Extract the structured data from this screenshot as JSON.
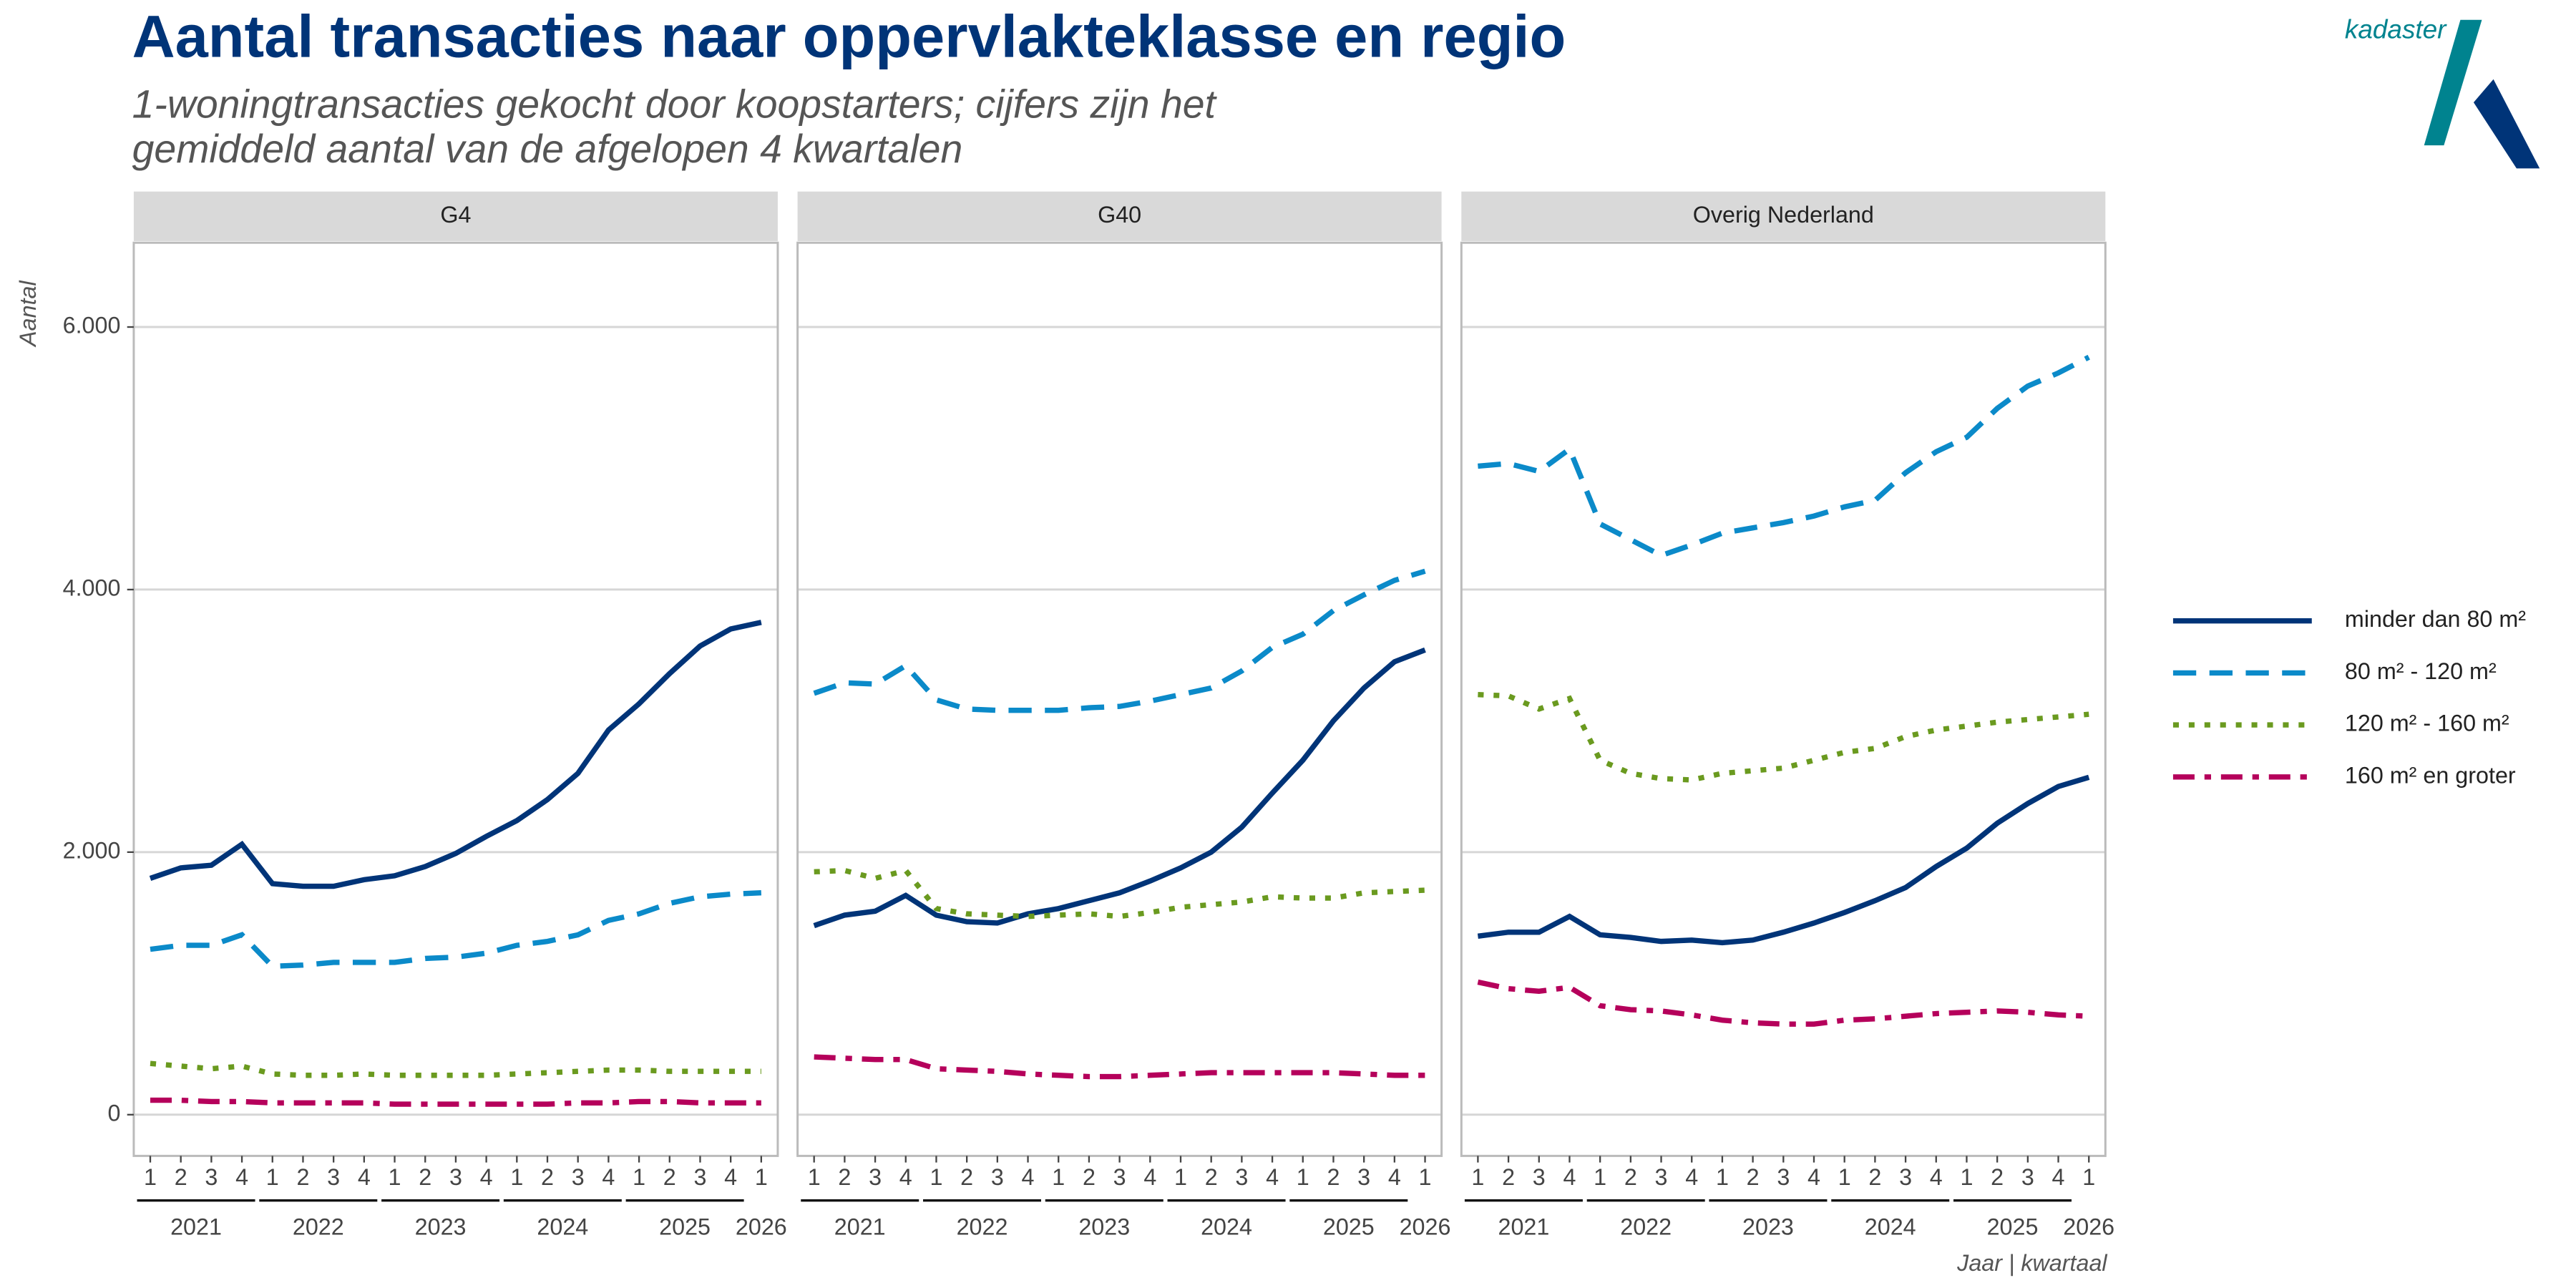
{
  "title": "Aantal transacties naar oppervlakteklasse en regio",
  "subtitle": [
    "1-woningtransacties gekocht door koopstarters; cijfers zijn het",
    "gemiddeld aantal van de afgelopen 4 kwartalen"
  ],
  "y_label": "Aantal",
  "x_label": "Jaar | kwartaal",
  "logo_text": "kadaster",
  "chart_data": [
    {
      "type": "line",
      "title": "G4",
      "categories": [
        "1",
        "2",
        "3",
        "4",
        "1",
        "2",
        "3",
        "4",
        "1",
        "2",
        "3",
        "4",
        "1",
        "2",
        "3",
        "4",
        "1",
        "2",
        "3",
        "4",
        "1"
      ],
      "years": [
        "2021",
        "2022",
        "2023",
        "2024",
        "2025",
        "2026"
      ],
      "ylim": [
        -314,
        6642
      ],
      "yticks": [
        0,
        {
          "value": 2000,
          "label": "2.000"
        },
        {
          "value": 4000,
          "label": "4.000"
        },
        {
          "value": 6000,
          "label": "6.000"
        }
      ],
      "grid": true,
      "series": [
        {
          "name": "minder dan 80 m²",
          "color": "#003478",
          "linestyle": "solid",
          "values": [
            1800,
            1880,
            1900,
            2060,
            1760,
            1740,
            1740,
            1790,
            1820,
            1890,
            1990,
            2120,
            2240,
            2400,
            2600,
            2930,
            3130,
            3360,
            3570,
            3700,
            3750
          ]
        },
        {
          "name": "80 m² - 120 m²",
          "color": "#0b8ac9",
          "linestyle": "dashed",
          "values": [
            1260,
            1290,
            1290,
            1370,
            1130,
            1140,
            1160,
            1160,
            1160,
            1190,
            1200,
            1230,
            1290,
            1320,
            1370,
            1480,
            1530,
            1610,
            1660,
            1680,
            1690
          ]
        },
        {
          "name": "120 m² - 160 m²",
          "color": "#6a9a1f",
          "linestyle": "dotted",
          "values": [
            390,
            370,
            350,
            370,
            310,
            300,
            300,
            310,
            300,
            300,
            300,
            300,
            310,
            320,
            330,
            340,
            340,
            330,
            330,
            330,
            330
          ]
        },
        {
          "name": "160 m² en groter",
          "color": "#b5005b",
          "linestyle": "dashdot",
          "values": [
            110,
            110,
            100,
            100,
            90,
            90,
            90,
            90,
            80,
            80,
            80,
            80,
            80,
            80,
            90,
            90,
            100,
            100,
            90,
            90,
            90
          ]
        }
      ]
    },
    {
      "type": "line",
      "title": "G40",
      "categories": [
        "1",
        "2",
        "3",
        "4",
        "1",
        "2",
        "3",
        "4",
        "1",
        "2",
        "3",
        "4",
        "1",
        "2",
        "3",
        "4",
        "1",
        "2",
        "3",
        "4",
        "1"
      ],
      "years": [
        "2021",
        "2022",
        "2023",
        "2024",
        "2025",
        "2026"
      ],
      "series": [
        {
          "name": "minder dan 80 m²",
          "color": "#003478",
          "linestyle": "solid",
          "values": [
            1440,
            1520,
            1550,
            1670,
            1520,
            1470,
            1460,
            1530,
            1570,
            1630,
            1690,
            1780,
            1880,
            2000,
            2190,
            2450,
            2700,
            3000,
            3250,
            3450,
            3540
          ]
        },
        {
          "name": "80 m² - 120 m²",
          "color": "#0b8ac9",
          "linestyle": "dashed",
          "values": [
            3210,
            3290,
            3280,
            3420,
            3160,
            3090,
            3080,
            3080,
            3080,
            3100,
            3110,
            3150,
            3200,
            3250,
            3380,
            3560,
            3660,
            3840,
            3960,
            4070,
            4140
          ]
        },
        {
          "name": "120 m² - 160 m²",
          "color": "#6a9a1f",
          "linestyle": "dotted",
          "values": [
            1850,
            1860,
            1800,
            1860,
            1570,
            1530,
            1520,
            1510,
            1520,
            1530,
            1510,
            1540,
            1580,
            1600,
            1620,
            1660,
            1650,
            1650,
            1690,
            1700,
            1710
          ]
        },
        {
          "name": "160 m² en groter",
          "color": "#b5005b",
          "linestyle": "dashdot",
          "values": [
            440,
            430,
            420,
            420,
            350,
            340,
            330,
            310,
            300,
            290,
            290,
            300,
            310,
            320,
            320,
            320,
            320,
            320,
            310,
            300,
            300
          ]
        }
      ]
    },
    {
      "type": "line",
      "title": "Overig Nederland",
      "categories": [
        "1",
        "2",
        "3",
        "4",
        "1",
        "2",
        "3",
        "4",
        "1",
        "2",
        "3",
        "4",
        "1",
        "2",
        "3",
        "4",
        "1",
        "2",
        "3",
        "4",
        "1"
      ],
      "years": [
        "2021",
        "2022",
        "2023",
        "2024",
        "2025",
        "2026"
      ],
      "series": [
        {
          "name": "minder dan 80 m²",
          "color": "#003478",
          "linestyle": "solid",
          "values": [
            1360,
            1390,
            1390,
            1510,
            1370,
            1350,
            1320,
            1330,
            1310,
            1330,
            1390,
            1460,
            1540,
            1630,
            1730,
            1890,
            2030,
            2220,
            2370,
            2500,
            2570
          ]
        },
        {
          "name": "80 m² - 120 m²",
          "color": "#0b8ac9",
          "linestyle": "dashed",
          "values": [
            4940,
            4960,
            4900,
            5070,
            4500,
            4380,
            4260,
            4340,
            4430,
            4470,
            4510,
            4560,
            4630,
            4680,
            4890,
            5050,
            5160,
            5380,
            5550,
            5650,
            5770
          ]
        },
        {
          "name": "120 m² - 160 m²",
          "color": "#6a9a1f",
          "linestyle": "dotted",
          "values": [
            3200,
            3190,
            3090,
            3170,
            2700,
            2600,
            2560,
            2550,
            2600,
            2620,
            2640,
            2700,
            2760,
            2790,
            2880,
            2930,
            2960,
            2990,
            3010,
            3030,
            3050
          ]
        },
        {
          "name": "160 m² en groter",
          "color": "#b5005b",
          "linestyle": "dashdot",
          "values": [
            1010,
            960,
            940,
            970,
            830,
            800,
            790,
            760,
            720,
            700,
            690,
            690,
            720,
            730,
            750,
            770,
            780,
            790,
            780,
            760,
            750
          ]
        }
      ]
    }
  ]
}
